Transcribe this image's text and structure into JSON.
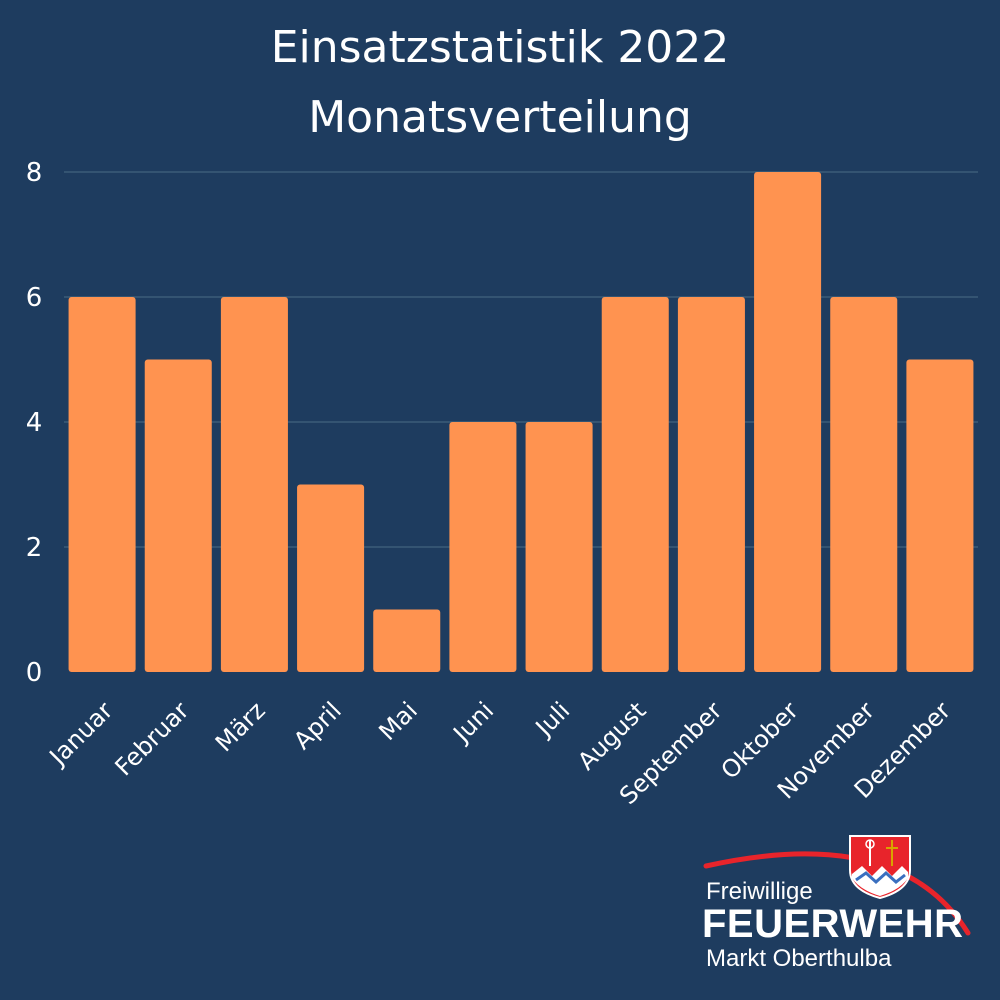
{
  "chart_data": {
    "type": "bar",
    "title": [
      "Einsatzstatistik 2022",
      "Monatsverteilung"
    ],
    "categories": [
      "Januar",
      "Februar",
      "März",
      "April",
      "Mai",
      "Juni",
      "Juli",
      "August",
      "September",
      "Oktober",
      "November",
      "Dezember"
    ],
    "values": [
      6,
      5,
      6,
      3,
      1,
      4,
      4,
      6,
      6,
      8,
      6,
      5
    ],
    "xlabel": "",
    "ylabel": "",
    "ylim": [
      0,
      8
    ],
    "yticks": [
      "0",
      "2",
      "4",
      "6",
      "8"
    ],
    "grid": true,
    "legend": "none",
    "bar_color": "#ff9350",
    "background_color": "#1e3c5f"
  },
  "logo": {
    "line1": "Freiwillige",
    "line2": "FEUERWEHR",
    "line3": "Markt Oberthulba",
    "arc_color": "#e8242b",
    "crest_icon": "coat-of-arms-icon"
  }
}
